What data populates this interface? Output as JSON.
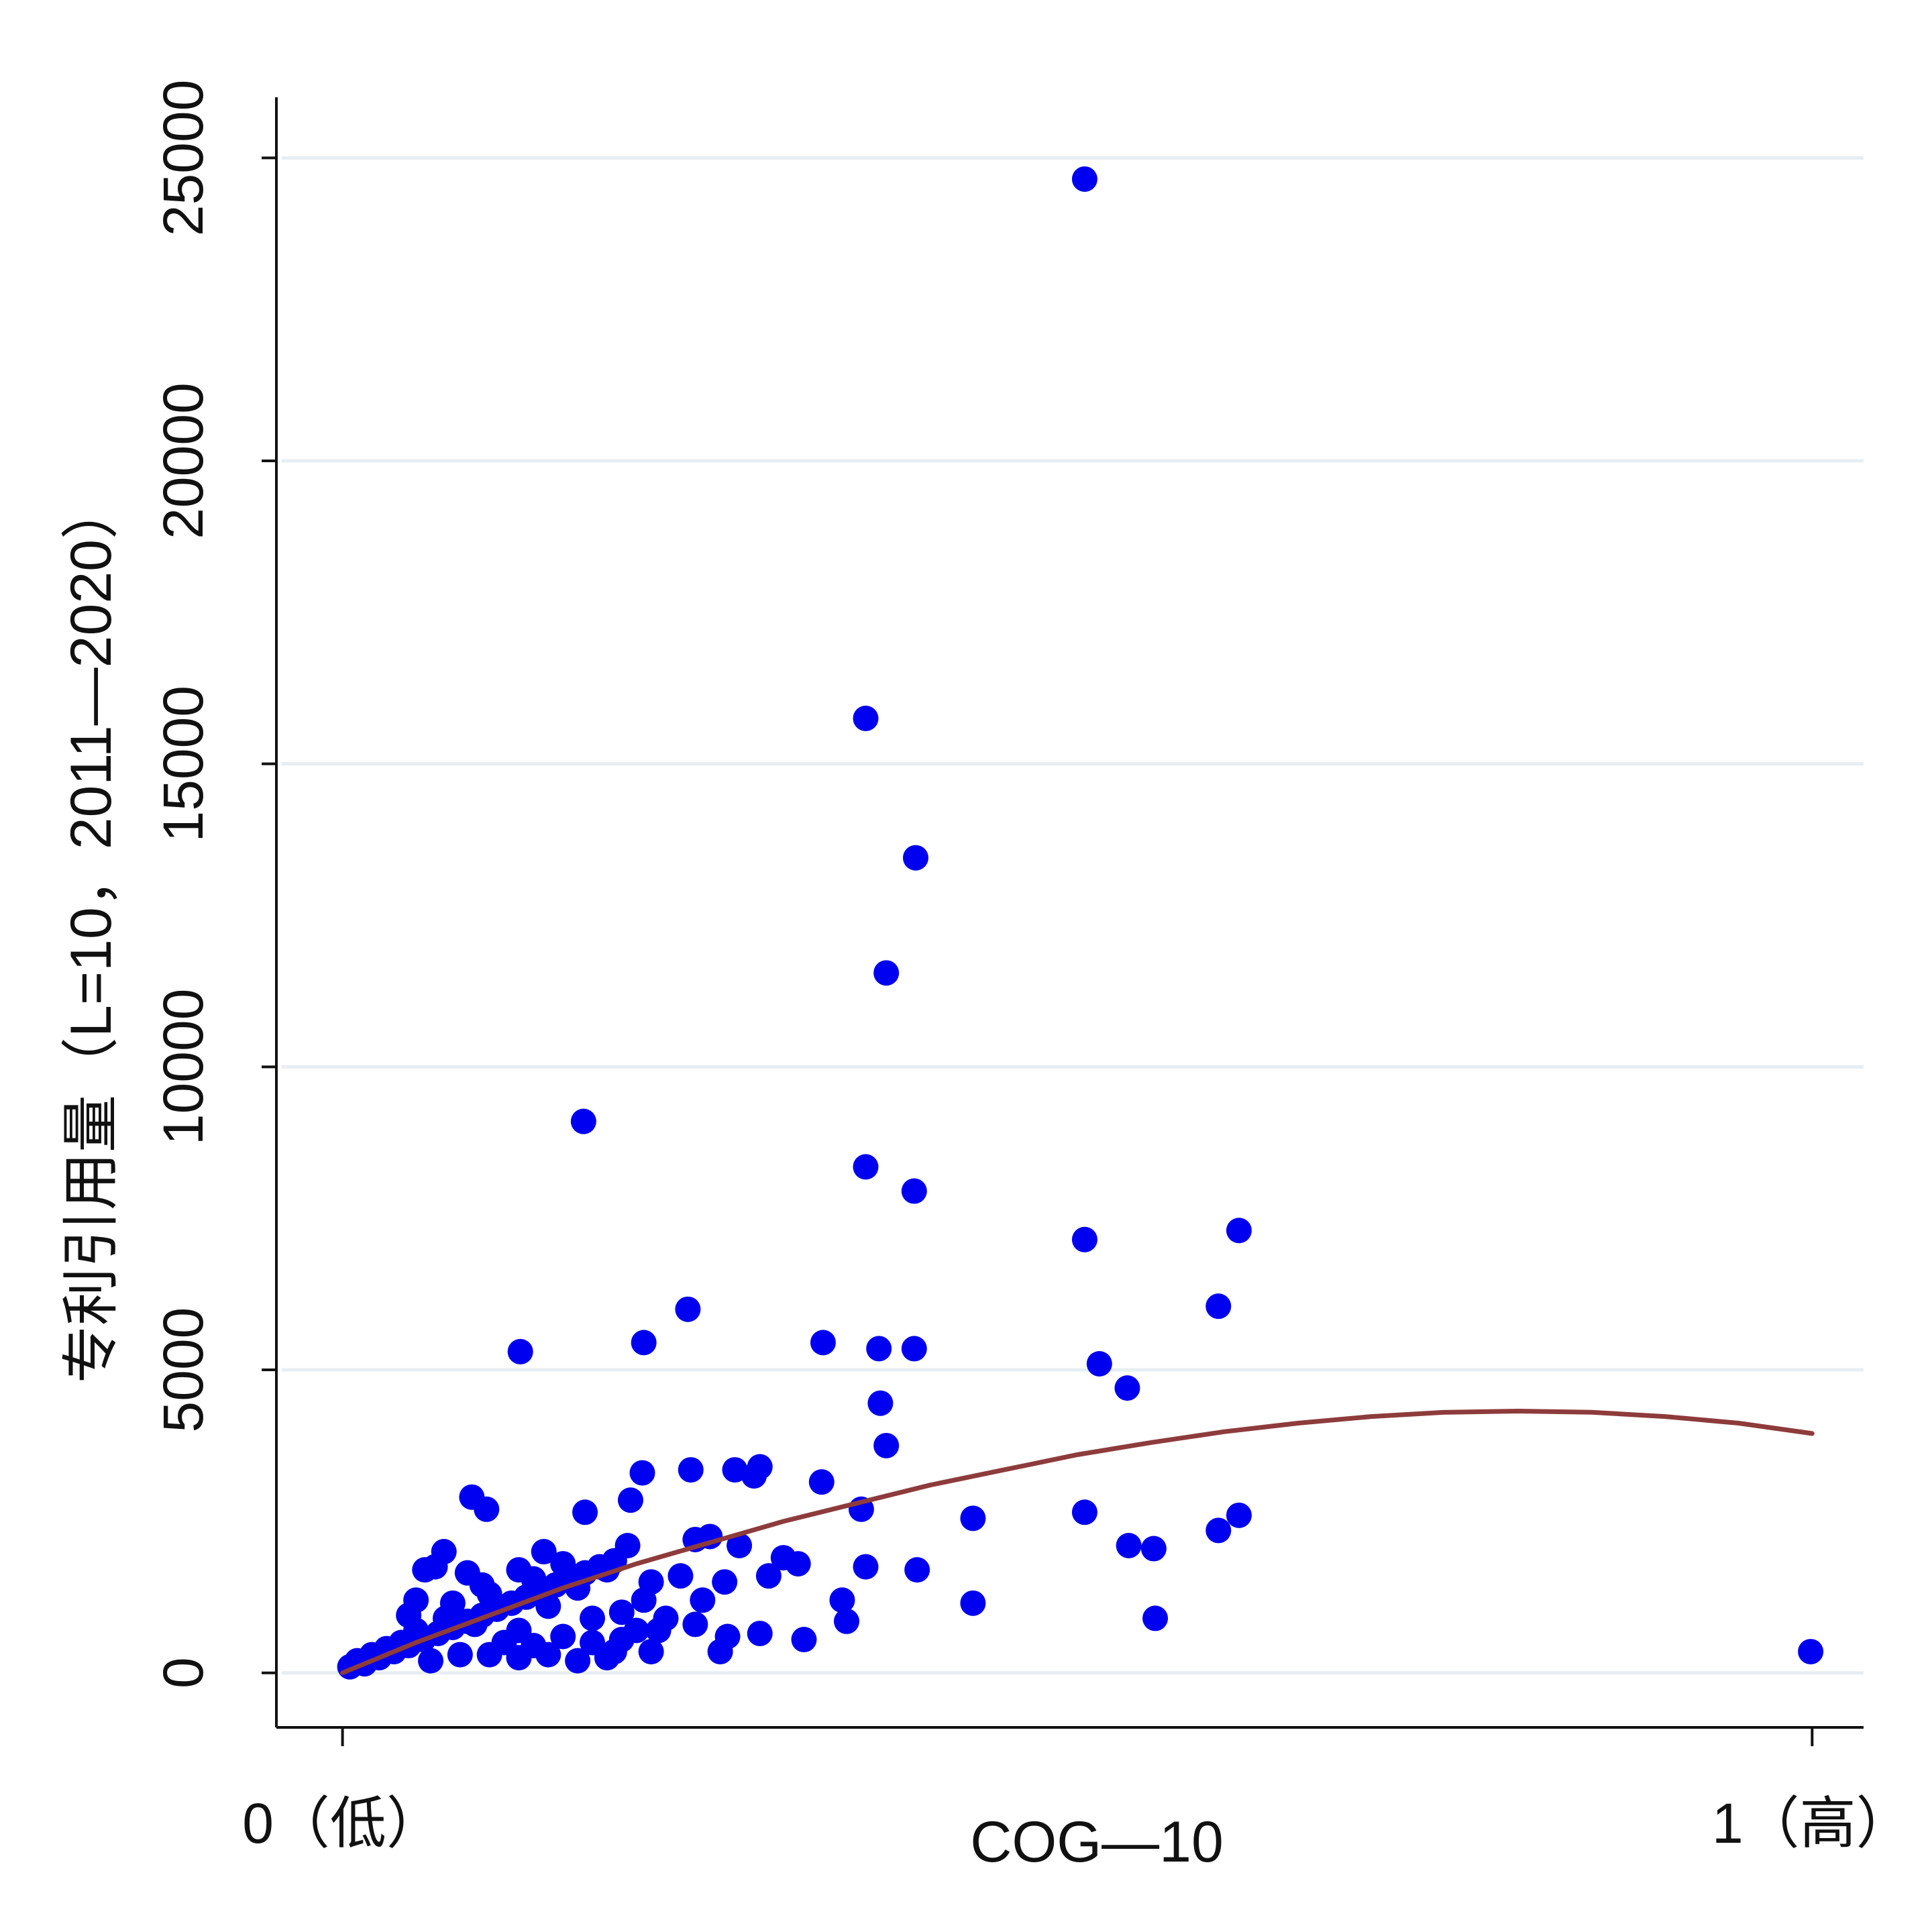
{
  "chart_data": {
    "type": "scatter",
    "xlabel": "COG—10",
    "ylabel": "专利引用量（L=10，2011—2020）",
    "xlim": [
      -0.045,
      1.035
    ],
    "ylim": [
      -900,
      26000
    ],
    "x_ticks": [
      {
        "value": 0,
        "label": "0（低）"
      },
      {
        "value": 1,
        "label": "1（高）"
      }
    ],
    "y_ticks": [
      {
        "value": 0,
        "label": "0"
      },
      {
        "value": 5000,
        "label": "5000"
      },
      {
        "value": 10000,
        "label": "10000"
      },
      {
        "value": 15000,
        "label": "15000"
      },
      {
        "value": 20000,
        "label": "20000"
      },
      {
        "value": 25000,
        "label": "25000"
      }
    ],
    "grid": "horizontal",
    "series": [
      {
        "kind": "scatter",
        "points": [
          [
            0.505,
            24650
          ],
          [
            0.356,
            15750
          ],
          [
            0.39,
            13450
          ],
          [
            0.37,
            11550
          ],
          [
            0.164,
            9100
          ],
          [
            0.356,
            8350
          ],
          [
            0.389,
            7950
          ],
          [
            0.505,
            7150
          ],
          [
            0.61,
            7300
          ],
          [
            0.596,
            6050
          ],
          [
            0.235,
            6000
          ],
          [
            0.121,
            5300
          ],
          [
            0.205,
            5450
          ],
          [
            0.327,
            5450
          ],
          [
            0.365,
            5350
          ],
          [
            0.389,
            5350
          ],
          [
            0.515,
            5100
          ],
          [
            0.534,
            4700
          ],
          [
            0.366,
            4450
          ],
          [
            0.37,
            3750
          ],
          [
            0.284,
            3400
          ],
          [
            0.204,
            3300
          ],
          [
            0.237,
            3350
          ],
          [
            0.267,
            3350
          ],
          [
            0.28,
            3250
          ],
          [
            0.326,
            3150
          ],
          [
            0.353,
            2700
          ],
          [
            0.429,
            2550
          ],
          [
            0.505,
            2650
          ],
          [
            0.61,
            2600
          ],
          [
            0.596,
            2350
          ],
          [
            0.535,
            2100
          ],
          [
            0.552,
            2050
          ],
          [
            0.356,
            1750
          ],
          [
            0.391,
            1700
          ],
          [
            0.429,
            1150
          ],
          [
            0.553,
            900
          ],
          [
            0.088,
            2900
          ],
          [
            0.098,
            2700
          ],
          [
            0.165,
            2650
          ],
          [
            0.196,
            2850
          ],
          [
            0.137,
            2000
          ],
          [
            0.069,
            2000
          ],
          [
            0.194,
            2100
          ],
          [
            0.24,
            2200
          ],
          [
            0.25,
            2250
          ],
          [
            0.27,
            2100
          ],
          [
            0.31,
            1800
          ],
          [
            0.3,
            1900
          ],
          [
            0.29,
            1600
          ],
          [
            0.34,
            1200
          ],
          [
            0.343,
            850
          ],
          [
            0.314,
            550
          ],
          [
            0.284,
            650
          ],
          [
            0.257,
            350
          ],
          [
            0.262,
            600
          ],
          [
            0.24,
            800
          ],
          [
            0.245,
            1200
          ],
          [
            0.999,
            350
          ],
          [
            0.063,
            1750
          ],
          [
            0.056,
            1700
          ],
          [
            0.085,
            1650
          ],
          [
            0.12,
            1700
          ],
          [
            0.15,
            1800
          ],
          [
            0.18,
            1700
          ],
          [
            0.21,
            1500
          ],
          [
            0.23,
            1600
          ],
          [
            0.26,
            1500
          ],
          [
            0.16,
            1400
          ],
          [
            0.1,
            1300
          ],
          [
            0.14,
            1100
          ],
          [
            0.19,
            1000
          ],
          [
            0.22,
            900
          ],
          [
            0.17,
            900
          ],
          [
            0.2,
            700
          ],
          [
            0.15,
            600
          ],
          [
            0.12,
            700
          ],
          [
            0.09,
            800
          ],
          [
            0.07,
            900
          ],
          [
            0.05,
            700
          ],
          [
            0.04,
            500
          ],
          [
            0.03,
            400
          ],
          [
            0.02,
            300
          ],
          [
            0.01,
            200
          ],
          [
            0.005,
            100
          ],
          [
            0.015,
            150
          ],
          [
            0.025,
            250
          ],
          [
            0.035,
            350
          ],
          [
            0.045,
            450
          ],
          [
            0.055,
            550
          ],
          [
            0.065,
            650
          ],
          [
            0.075,
            750
          ],
          [
            0.085,
            850
          ],
          [
            0.095,
            950
          ],
          [
            0.105,
            1050
          ],
          [
            0.115,
            1150
          ],
          [
            0.125,
            1250
          ],
          [
            0.135,
            1350
          ],
          [
            0.145,
            1450
          ],
          [
            0.155,
            1550
          ],
          [
            0.165,
            1650
          ],
          [
            0.175,
            1750
          ],
          [
            0.185,
            1850
          ],
          [
            0.08,
            300
          ],
          [
            0.1,
            300
          ],
          [
            0.12,
            250
          ],
          [
            0.14,
            300
          ],
          [
            0.16,
            200
          ],
          [
            0.18,
            250
          ],
          [
            0.06,
            200
          ],
          [
            0.11,
            500
          ],
          [
            0.13,
            450
          ],
          [
            0.17,
            500
          ],
          [
            0.19,
            550
          ],
          [
            0.21,
            350
          ],
          [
            0.05,
            1200
          ],
          [
            0.045,
            950
          ],
          [
            0.075,
            1150
          ],
          [
            0.095,
            1450
          ],
          [
            0.13,
            1550
          ],
          [
            0.205,
            1200
          ],
          [
            0.215,
            700
          ],
          [
            0.185,
            350
          ]
        ]
      },
      {
        "kind": "line",
        "name": "",
        "x": [
          0,
          0.05,
          0.1,
          0.15,
          0.2,
          0.25,
          0.3,
          0.35,
          0.4,
          0.45,
          0.5,
          0.55,
          0.6,
          0.65,
          0.7,
          0.75,
          0.8,
          0.85,
          0.9,
          0.95,
          1.0
        ],
        "y": [
          0,
          500,
          950,
          1400,
          1800,
          2150,
          2500,
          2800,
          3100,
          3350,
          3600,
          3800,
          3980,
          4120,
          4230,
          4300,
          4320,
          4300,
          4230,
          4120,
          3950
        ]
      }
    ],
    "colors": {
      "points": "#0000f0",
      "line": "#8e3b3b"
    }
  }
}
